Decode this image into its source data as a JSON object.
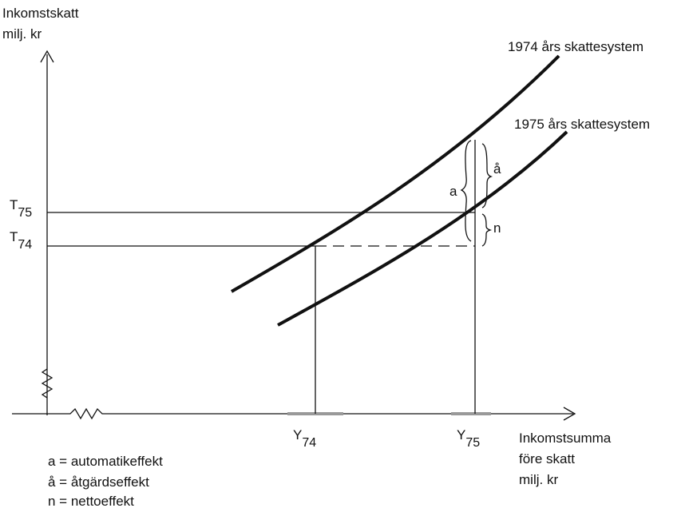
{
  "y_axis_label": [
    "Inkomstskatt",
    "milj. kr"
  ],
  "x_axis_label": [
    "Inkomstsumma",
    "före skatt",
    "milj. kr"
  ],
  "curves": [
    {
      "label": "1974 års skattesystem"
    },
    {
      "label": "1975 års skattesystem"
    }
  ],
  "y_marks": [
    {
      "main": "T",
      "sub": "75"
    },
    {
      "main": "T",
      "sub": "74"
    }
  ],
  "x_marks": [
    {
      "main": "Y",
      "sub": "74"
    },
    {
      "main": "Y",
      "sub": "75"
    }
  ],
  "braces": [
    "a",
    "å",
    "n"
  ],
  "legend": [
    "a = automatikeffekt",
    "å = åtgärdseffekt",
    "n = nettoeffekt"
  ]
}
